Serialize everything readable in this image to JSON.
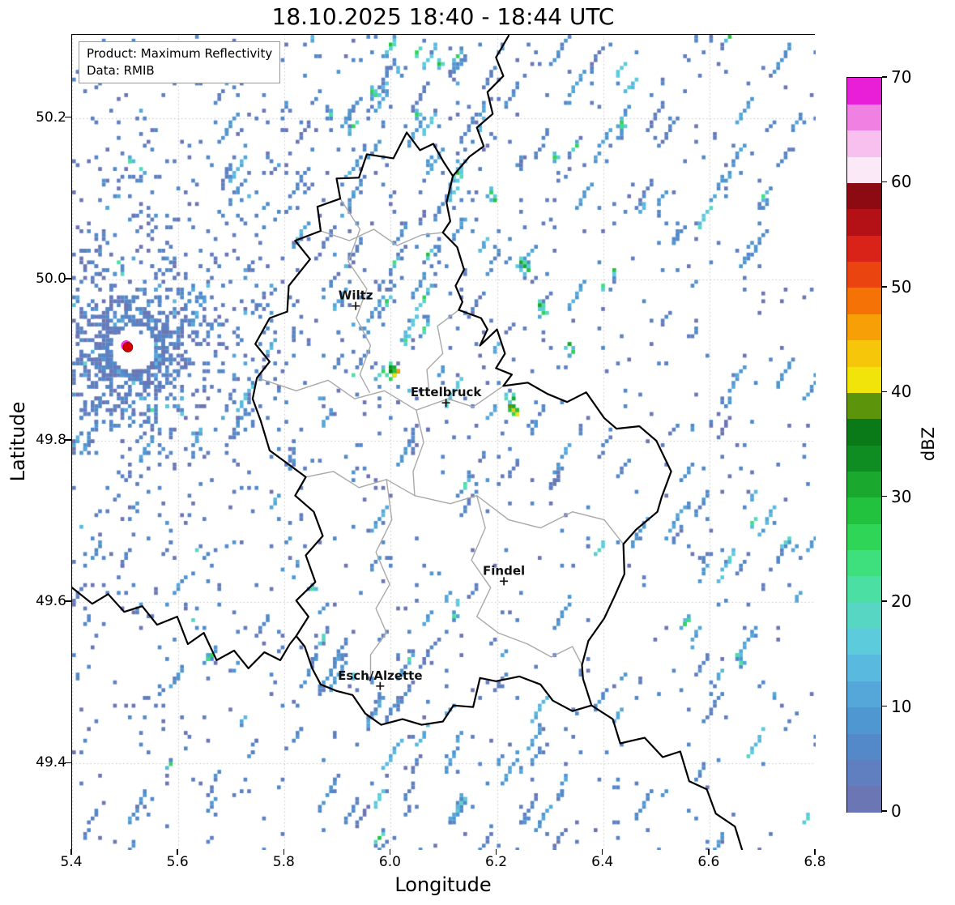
{
  "title": "18.10.2025 18:40 - 18:44 UTC",
  "annotation": {
    "product": "Product: Maximum Reflectivity",
    "source": "Data: RMIB"
  },
  "axes": {
    "xlabel": "Longitude",
    "ylabel": "Latitude",
    "x_tick_labels": [
      "5.4",
      "5.6",
      "5.8",
      "6.0",
      "6.2",
      "6.4",
      "6.6",
      "6.8"
    ],
    "x_tick_values": [
      5.4,
      5.6,
      5.8,
      6.0,
      6.2,
      6.4,
      6.6,
      6.8
    ],
    "y_tick_labels": [
      "49.4",
      "49.6",
      "49.8",
      "50.0",
      "50.2"
    ],
    "y_tick_values": [
      49.4,
      49.6,
      49.8,
      50.0,
      50.2
    ],
    "x_range": [
      5.4,
      6.8
    ],
    "y_range": [
      49.293,
      50.303
    ],
    "grid_color": "#c6c6c6"
  },
  "colorbar": {
    "label": "dBZ",
    "tick_labels": [
      "0",
      "10",
      "20",
      "30",
      "40",
      "50",
      "60",
      "70"
    ],
    "tick_values": [
      0,
      10,
      20,
      30,
      40,
      50,
      60,
      70
    ],
    "vmin": 0,
    "vmax": 70,
    "band_step": 2.5,
    "band_colors": [
      "#6b76b4",
      "#5f7fc0",
      "#5389c9",
      "#4f97d1",
      "#55a7d9",
      "#5ab9de",
      "#5ccbdc",
      "#57d6c4",
      "#4cdfa3",
      "#3edf7d",
      "#2ed557",
      "#23c23e",
      "#1aa92e",
      "#108d22",
      "#0a7a18",
      "#5c940c",
      "#f0e40b",
      "#f6c60a",
      "#f79f06",
      "#f47206",
      "#ea4511",
      "#d92318",
      "#b41117",
      "#8c0a12",
      "#fbe9f7",
      "#f7c0ee",
      "#f080e2",
      "#e81fd7"
    ]
  },
  "cities": [
    {
      "name": "Wiltz",
      "lon": 5.934,
      "lat": 49.967
    },
    {
      "name": "Ettelbruck",
      "lon": 6.104,
      "lat": 49.847
    },
    {
      "name": "Findel",
      "lon": 6.213,
      "lat": 49.626
    },
    {
      "name": "Esch/Alzette",
      "lon": 5.98,
      "lat": 49.496
    }
  ],
  "radar_site": {
    "lon": 5.505,
    "lat": 49.916,
    "fill": "#d40000",
    "edge": "#ff2fd8"
  },
  "geo": {
    "country_color": "#000000",
    "district_color": "#a9a9a9",
    "country_borders": [
      [
        [
          6.03,
          50.182
        ],
        [
          6.055,
          50.16
        ],
        [
          6.08,
          50.168
        ],
        [
          6.1,
          50.145
        ],
        [
          6.117,
          50.128
        ],
        [
          6.105,
          50.095
        ],
        [
          6.112,
          50.072
        ],
        [
          6.098,
          50.058
        ],
        [
          6.125,
          50.04
        ],
        [
          6.138,
          50.012
        ],
        [
          6.122,
          49.992
        ],
        [
          6.135,
          49.972
        ],
        [
          6.128,
          49.962
        ],
        [
          6.17,
          49.952
        ],
        [
          6.182,
          49.938
        ],
        [
          6.168,
          49.918
        ],
        [
          6.2,
          49.938
        ],
        [
          6.215,
          49.908
        ],
        [
          6.198,
          49.89
        ],
        [
          6.228,
          49.882
        ],
        [
          6.212,
          49.868
        ],
        [
          6.258,
          49.872
        ],
        [
          6.295,
          49.858
        ],
        [
          6.332,
          49.848
        ],
        [
          6.368,
          49.86
        ],
        [
          6.402,
          49.828
        ],
        [
          6.425,
          49.815
        ],
        [
          6.468,
          49.818
        ],
        [
          6.5,
          49.8
        ],
        [
          6.528,
          49.762
        ],
        [
          6.51,
          49.73
        ],
        [
          6.502,
          49.712
        ],
        [
          6.462,
          49.69
        ],
        [
          6.438,
          49.672
        ],
        [
          6.44,
          49.635
        ],
        [
          6.422,
          49.608
        ],
        [
          6.402,
          49.58
        ],
        [
          6.372,
          49.552
        ],
        [
          6.36,
          49.522
        ],
        [
          6.362,
          49.505
        ],
        [
          6.378,
          49.472
        ],
        [
          6.342,
          49.465
        ],
        [
          6.305,
          49.478
        ],
        [
          6.282,
          49.498
        ],
        [
          6.242,
          49.508
        ],
        [
          6.198,
          49.502
        ],
        [
          6.168,
          49.506
        ],
        [
          6.155,
          49.47
        ],
        [
          6.118,
          49.472
        ],
        [
          6.098,
          49.452
        ],
        [
          6.058,
          49.448
        ],
        [
          6.022,
          49.455
        ],
        [
          5.982,
          49.448
        ],
        [
          5.952,
          49.462
        ],
        [
          5.928,
          49.485
        ],
        [
          5.898,
          49.49
        ],
        [
          5.868,
          49.498
        ],
        [
          5.852,
          49.518
        ],
        [
          5.838,
          49.545
        ],
        [
          5.822,
          49.558
        ],
        [
          5.845,
          49.582
        ],
        [
          5.822,
          49.602
        ],
        [
          5.858,
          49.625
        ],
        [
          5.84,
          49.658
        ],
        [
          5.872,
          49.682
        ],
        [
          5.855,
          49.712
        ],
        [
          5.82,
          49.732
        ],
        [
          5.84,
          49.755
        ],
        [
          5.805,
          49.772
        ],
        [
          5.772,
          49.788
        ],
        [
          5.755,
          49.825
        ],
        [
          5.74,
          49.852
        ],
        [
          5.748,
          49.878
        ],
        [
          5.772,
          49.898
        ],
        [
          5.745,
          49.92
        ],
        [
          5.772,
          49.952
        ],
        [
          5.805,
          49.96
        ],
        [
          5.808,
          49.992
        ],
        [
          5.848,
          50.025
        ],
        [
          5.82,
          50.048
        ],
        [
          5.868,
          50.06
        ],
        [
          5.862,
          50.09
        ],
        [
          5.905,
          50.1
        ],
        [
          5.898,
          50.125
        ],
        [
          5.94,
          50.126
        ],
        [
          5.955,
          50.155
        ],
        [
          6.005,
          50.15
        ],
        [
          6.03,
          50.182
        ]
      ],
      [
        [
          5.4,
          49.618
        ],
        [
          5.438,
          49.598
        ],
        [
          5.468,
          49.61
        ],
        [
          5.498,
          49.588
        ],
        [
          5.532,
          49.595
        ],
        [
          5.56,
          49.572
        ],
        [
          5.598,
          49.582
        ],
        [
          5.618,
          49.548
        ],
        [
          5.648,
          49.562
        ],
        [
          5.672,
          49.528
        ],
        [
          5.705,
          49.54
        ],
        [
          5.732,
          49.518
        ],
        [
          5.762,
          49.538
        ],
        [
          5.792,
          49.528
        ],
        [
          5.81,
          49.548
        ],
        [
          5.822,
          49.558
        ]
      ],
      [
        [
          6.222,
          50.302
        ],
        [
          6.198,
          50.275
        ],
        [
          6.212,
          50.252
        ],
        [
          6.182,
          50.232
        ],
        [
          6.192,
          50.205
        ],
        [
          6.162,
          50.188
        ],
        [
          6.175,
          50.165
        ],
        [
          6.148,
          50.152
        ],
        [
          6.117,
          50.128
        ]
      ],
      [
        [
          6.378,
          49.472
        ],
        [
          6.418,
          49.455
        ],
        [
          6.432,
          49.425
        ],
        [
          6.478,
          49.432
        ],
        [
          6.512,
          49.408
        ],
        [
          6.545,
          49.415
        ],
        [
          6.562,
          49.378
        ],
        [
          6.595,
          49.368
        ],
        [
          6.612,
          49.338
        ],
        [
          6.648,
          49.322
        ],
        [
          6.662,
          49.292
        ]
      ]
    ],
    "district_borders": [
      [
        [
          5.748,
          49.878
        ],
        [
          5.822,
          49.862
        ],
        [
          5.882,
          49.875
        ],
        [
          5.932,
          49.852
        ],
        [
          5.988,
          49.862
        ],
        [
          6.048,
          49.838
        ],
        [
          6.108,
          49.852
        ],
        [
          6.155,
          49.842
        ],
        [
          6.212,
          49.868
        ]
      ],
      [
        [
          5.905,
          50.1
        ],
        [
          5.942,
          50.062
        ],
        [
          5.92,
          50.022
        ],
        [
          5.955,
          49.988
        ],
        [
          5.935,
          49.952
        ],
        [
          5.962,
          49.918
        ],
        [
          5.942,
          49.882
        ],
        [
          5.96,
          49.86
        ]
      ],
      [
        [
          6.128,
          49.962
        ],
        [
          6.088,
          49.942
        ],
        [
          6.098,
          49.908
        ],
        [
          6.068,
          49.888
        ],
        [
          6.072,
          49.862
        ]
      ],
      [
        [
          5.84,
          49.755
        ],
        [
          5.892,
          49.762
        ],
        [
          5.94,
          49.742
        ],
        [
          5.992,
          49.752
        ],
        [
          6.045,
          49.732
        ],
        [
          6.112,
          49.722
        ],
        [
          6.162,
          49.732
        ],
        [
          6.222,
          49.702
        ],
        [
          6.282,
          49.692
        ],
        [
          6.342,
          49.712
        ],
        [
          6.402,
          49.702
        ],
        [
          6.438,
          49.672
        ]
      ],
      [
        [
          5.992,
          49.752
        ],
        [
          6.002,
          49.702
        ],
        [
          5.972,
          49.662
        ],
        [
          5.998,
          49.622
        ],
        [
          5.972,
          49.592
        ],
        [
          5.992,
          49.562
        ],
        [
          5.962,
          49.535
        ],
        [
          5.962,
          49.5
        ]
      ],
      [
        [
          6.162,
          49.732
        ],
        [
          6.178,
          49.692
        ],
        [
          6.152,
          49.652
        ],
        [
          6.188,
          49.618
        ],
        [
          6.162,
          49.582
        ],
        [
          6.202,
          49.562
        ],
        [
          6.258,
          49.548
        ],
        [
          6.302,
          49.532
        ],
        [
          6.342,
          49.545
        ],
        [
          6.36,
          49.522
        ]
      ],
      [
        [
          5.868,
          50.06
        ],
        [
          5.922,
          50.048
        ],
        [
          5.968,
          50.062
        ],
        [
          6.012,
          50.042
        ],
        [
          6.058,
          50.055
        ],
        [
          6.098,
          50.058
        ]
      ],
      [
        [
          6.048,
          49.838
        ],
        [
          6.062,
          49.798
        ],
        [
          6.042,
          49.762
        ],
        [
          6.045,
          49.732
        ]
      ]
    ]
  },
  "radar_field": {
    "seed": 1337,
    "radial": {
      "lon": 5.515,
      "lat": 49.914,
      "count": 2600,
      "max_r": 0.55
    },
    "streak_attempts": 1000,
    "sparse_count": 1600,
    "density_base": 0.16,
    "density_blobs": [
      {
        "lon": 6.05,
        "lat": 49.95,
        "sx": 0.18,
        "sy": 0.15,
        "amp": 0.55
      },
      {
        "lon": 6.3,
        "lat": 50.12,
        "sx": 0.22,
        "sy": 0.12,
        "amp": 0.4
      },
      {
        "lon": 5.75,
        "lat": 49.52,
        "sx": 0.2,
        "sy": 0.07,
        "amp": 0.45
      },
      {
        "lon": 6.2,
        "lat": 49.4,
        "sx": 0.25,
        "sy": 0.1,
        "amp": 0.3
      },
      {
        "lon": 6.58,
        "lat": 49.55,
        "sx": 0.15,
        "sy": 0.15,
        "amp": 0.3
      },
      {
        "lon": 6.65,
        "lat": 50.08,
        "sx": 0.15,
        "sy": 0.2,
        "amp": 0.25
      },
      {
        "lon": 6.45,
        "lat": 49.85,
        "sx": 0.12,
        "sy": 0.1,
        "amp": 0.15
      },
      {
        "lon": 5.95,
        "lat": 50.22,
        "sx": 0.15,
        "sy": 0.08,
        "amp": 0.3
      },
      {
        "lon": 6.2,
        "lat": 50.27,
        "sx": 0.45,
        "sy": 0.06,
        "amp": 0.25
      },
      {
        "lon": 6.75,
        "lat": 49.62,
        "sx": 0.1,
        "sy": 0.12,
        "amp": 0.25
      },
      {
        "lon": 6.0,
        "lat": 49.33,
        "sx": 0.2,
        "sy": 0.07,
        "amp": 0.25
      }
    ],
    "hotspots": [
      {
        "lon": 6.002,
        "lat": 49.893,
        "dbz": 34
      },
      {
        "lon": 6.006,
        "lat": 49.888,
        "dbz": 43
      },
      {
        "lon": 6.012,
        "lat": 49.884,
        "dbz": 45
      },
      {
        "lon": 6.006,
        "lat": 49.88,
        "dbz": 40
      },
      {
        "lon": 5.998,
        "lat": 49.884,
        "dbz": 36
      },
      {
        "lon": 6.226,
        "lat": 49.845,
        "dbz": 38
      },
      {
        "lon": 6.231,
        "lat": 49.84,
        "dbz": 43
      },
      {
        "lon": 6.236,
        "lat": 49.835,
        "dbz": 40
      },
      {
        "lon": 6.228,
        "lat": 49.852,
        "dbz": 30
      },
      {
        "lon": 6.246,
        "lat": 50.022,
        "dbz": 30
      },
      {
        "lon": 6.252,
        "lat": 50.016,
        "dbz": 32
      },
      {
        "lon": 6.258,
        "lat": 50.01,
        "dbz": 28
      },
      {
        "lon": 6.282,
        "lat": 49.968,
        "dbz": 30
      },
      {
        "lon": 6.288,
        "lat": 49.96,
        "dbz": 27
      },
      {
        "lon": 5.966,
        "lat": 50.232,
        "dbz": 26
      },
      {
        "lon": 5.972,
        "lat": 50.226,
        "dbz": 24
      },
      {
        "lon": 6.052,
        "lat": 50.205,
        "dbz": 25
      },
      {
        "lon": 6.432,
        "lat": 50.195,
        "dbz": 26
      },
      {
        "lon": 6.438,
        "lat": 50.188,
        "dbz": 24
      },
      {
        "lon": 5.662,
        "lat": 49.532,
        "dbz": 27
      },
      {
        "lon": 5.655,
        "lat": 49.528,
        "dbz": 24
      },
      {
        "lon": 5.852,
        "lat": 49.618,
        "dbz": 22
      },
      {
        "lon": 6.558,
        "lat": 49.578,
        "dbz": 24
      },
      {
        "lon": 6.552,
        "lat": 49.572,
        "dbz": 26
      },
      {
        "lon": 6.092,
        "lat": 50.268,
        "dbz": 28
      },
      {
        "lon": 6.335,
        "lat": 49.918,
        "dbz": 30
      },
      {
        "lon": 6.342,
        "lat": 49.91,
        "dbz": 26
      },
      {
        "lon": 6.188,
        "lat": 50.108,
        "dbz": 26
      },
      {
        "lon": 6.194,
        "lat": 50.1,
        "dbz": 29
      },
      {
        "lon": 5.885,
        "lat": 50.205,
        "dbz": 22
      },
      {
        "lon": 6.122,
        "lat": 49.582,
        "dbz": 20
      },
      {
        "lon": 6.655,
        "lat": 49.532,
        "dbz": 22
      },
      {
        "lon": 6.66,
        "lat": 49.525,
        "dbz": 20
      },
      {
        "lon": 5.512,
        "lat": 50.148,
        "dbz": 22
      },
      {
        "lon": 6.31,
        "lat": 50.152,
        "dbz": 25
      }
    ]
  }
}
